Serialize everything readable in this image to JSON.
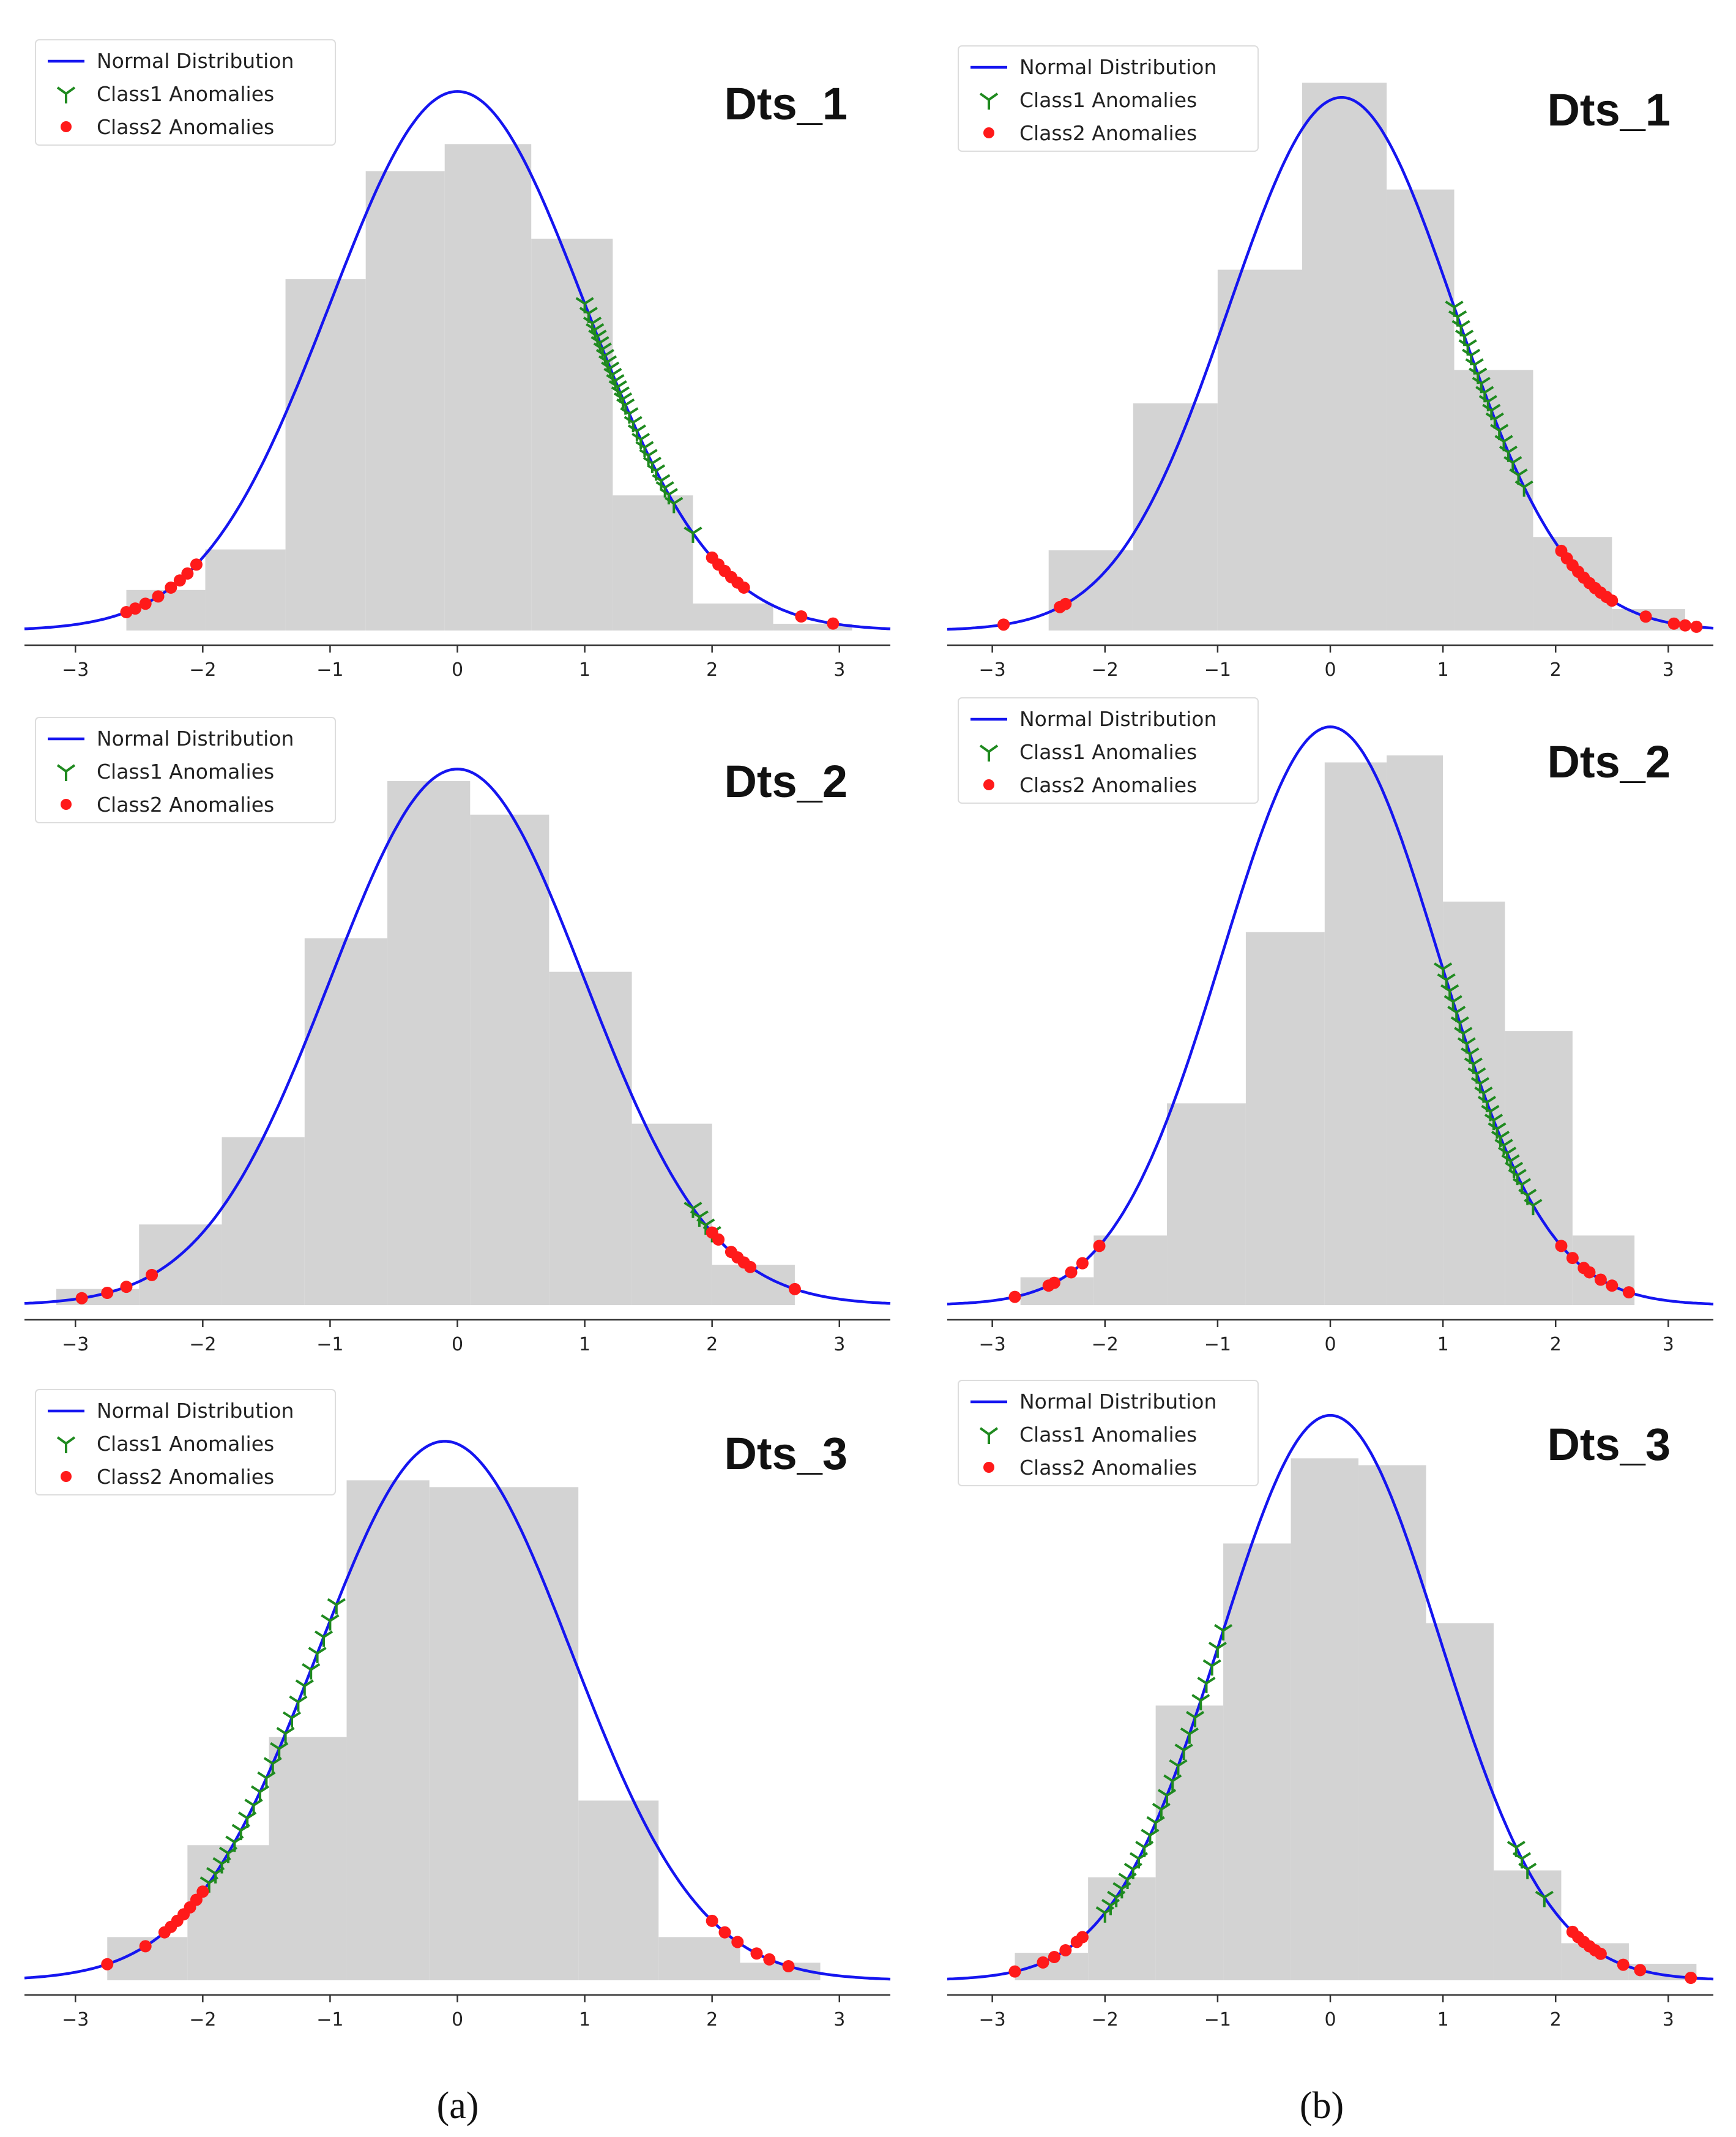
{
  "colors": {
    "bars": "#d3d3d3",
    "curve": "#1515f0",
    "class1": "#1f8a1f",
    "class2": "#ff1a1a",
    "axis": "#333333",
    "background": "#ffffff"
  },
  "legend": {
    "normal_label": "Normal Distribution",
    "class1_label": "Class1 Anomalies",
    "class2_label": "Class2  Anomalies"
  },
  "captions": {
    "a": "(a)",
    "b": "(b)"
  },
  "chart_data": [
    {
      "type": "histogram",
      "column": "a",
      "title": "Dts_1",
      "xlabel": "",
      "ylabel": "",
      "xticks": [
        -3,
        -2,
        -1,
        0,
        1,
        2,
        3
      ],
      "xlim": [
        -3.4,
        3.4
      ],
      "ylim": [
        0,
        0.41
      ],
      "legend_position": "top-left",
      "histogram": {
        "edges": [
          -2.6,
          -1.98,
          -1.35,
          -0.72,
          -0.1,
          0.58,
          1.22,
          1.85,
          2.48,
          3.1
        ],
        "density": [
          0.03,
          0.06,
          0.26,
          0.34,
          0.36,
          0.29,
          0.1,
          0.02,
          0.005
        ]
      },
      "normal": {
        "mean": 0.0,
        "std": 1.0,
        "scale": 1.0
      },
      "class1_x": [
        1.0,
        1.03,
        1.06,
        1.08,
        1.1,
        1.12,
        1.14,
        1.16,
        1.18,
        1.2,
        1.22,
        1.24,
        1.26,
        1.28,
        1.3,
        1.32,
        1.35,
        1.38,
        1.41,
        1.44,
        1.47,
        1.5,
        1.53,
        1.56,
        1.6,
        1.63,
        1.66,
        1.7,
        1.85
      ],
      "class2_x": [
        -2.6,
        -2.53,
        -2.45,
        -2.35,
        -2.25,
        -2.18,
        -2.12,
        -2.05,
        2.0,
        2.05,
        2.1,
        2.15,
        2.2,
        2.25,
        2.7,
        2.95
      ]
    },
    {
      "type": "histogram",
      "column": "b",
      "title": "Dts_1",
      "xlabel": "",
      "ylabel": "",
      "xticks": [
        -3,
        -2,
        -1,
        0,
        1,
        2,
        3
      ],
      "xlim": [
        -3.4,
        3.4
      ],
      "ylim": [
        0,
        0.41
      ],
      "legend_position": "top-left",
      "histogram": {
        "edges": [
          -2.5,
          -1.75,
          -1.0,
          -0.25,
          0.5,
          1.1,
          1.8,
          2.5,
          3.15
        ],
        "density": [
          0.06,
          0.17,
          0.27,
          0.41,
          0.33,
          0.195,
          0.07,
          0.016
        ]
      },
      "normal": {
        "mean": 0.1,
        "std": 1.0,
        "scale": 1.0
      },
      "class1_x": [
        1.1,
        1.13,
        1.16,
        1.19,
        1.22,
        1.25,
        1.28,
        1.31,
        1.34,
        1.37,
        1.4,
        1.43,
        1.46,
        1.5,
        1.54,
        1.58,
        1.62,
        1.67,
        1.72
      ],
      "class2_x": [
        -2.9,
        -2.4,
        -2.35,
        2.05,
        2.1,
        2.15,
        2.2,
        2.25,
        2.3,
        2.35,
        2.4,
        2.45,
        2.5,
        2.8,
        3.05,
        3.15,
        3.25
      ]
    },
    {
      "type": "histogram",
      "column": "a",
      "title": "Dts_2",
      "xlabel": "",
      "ylabel": "",
      "xticks": [
        -3,
        -2,
        -1,
        0,
        1,
        2,
        3
      ],
      "xlim": [
        -3.4,
        3.4
      ],
      "ylim": [
        0,
        0.41
      ],
      "legend_position": "top-left",
      "histogram": {
        "edges": [
          -3.15,
          -2.5,
          -1.85,
          -1.2,
          -0.55,
          0.1,
          0.72,
          1.37,
          2.0,
          2.65
        ],
        "density": [
          0.012,
          0.06,
          0.125,
          0.273,
          0.39,
          0.365,
          0.248,
          0.135,
          0.03
        ]
      },
      "normal": {
        "mean": 0.0,
        "std": 1.0,
        "scale": 1.0
      },
      "class1_x": [
        1.85,
        1.9,
        1.95,
        2.0
      ],
      "class2_x": [
        -2.95,
        -2.75,
        -2.6,
        -2.4,
        2.0,
        2.05,
        2.15,
        2.2,
        2.25,
        2.3,
        2.65
      ]
    },
    {
      "type": "histogram",
      "column": "b",
      "title": "Dts_2",
      "xlabel": "",
      "ylabel": "",
      "xticks": [
        -3,
        -2,
        -1,
        0,
        1,
        2,
        3
      ],
      "xlim": [
        -3.4,
        3.4
      ],
      "ylim": [
        0,
        0.41
      ],
      "legend_position": "top-left",
      "histogram": {
        "edges": [
          -2.75,
          -2.1,
          -1.45,
          -0.75,
          -0.05,
          0.5,
          1.0,
          1.55,
          2.15,
          2.7
        ],
        "density": [
          0.02,
          0.05,
          0.145,
          0.268,
          0.39,
          0.395,
          0.29,
          0.197,
          0.05
        ]
      },
      "normal": {
        "mean": 0.0,
        "std": 0.96,
        "scale": 1.0
      },
      "class1_x": [
        1.0,
        1.03,
        1.06,
        1.09,
        1.12,
        1.15,
        1.18,
        1.21,
        1.24,
        1.27,
        1.3,
        1.33,
        1.36,
        1.39,
        1.42,
        1.45,
        1.48,
        1.51,
        1.54,
        1.57,
        1.6,
        1.63,
        1.66,
        1.7,
        1.75,
        1.8
      ],
      "class2_x": [
        -2.8,
        -2.5,
        -2.45,
        -2.3,
        -2.2,
        -2.05,
        2.05,
        2.15,
        2.25,
        2.3,
        2.4,
        2.5,
        2.65
      ]
    },
    {
      "type": "histogram",
      "column": "a",
      "title": "Dts_3",
      "xlabel": "",
      "ylabel": "",
      "xticks": [
        -3,
        -2,
        -1,
        0,
        1,
        2,
        3
      ],
      "xlim": [
        -3.4,
        3.4
      ],
      "ylim": [
        0,
        0.41
      ],
      "legend_position": "top-left",
      "histogram": {
        "edges": [
          -2.75,
          -2.12,
          -1.48,
          -0.87,
          -0.22,
          0.95,
          1.58,
          2.22,
          2.85
        ],
        "density": [
          0.032,
          0.1,
          0.18,
          0.37,
          0.365,
          0.133,
          0.032,
          0.013
        ]
      },
      "normal": {
        "mean": -0.1,
        "std": 1.0,
        "scale": 1.0
      },
      "class1_x": [
        -1.95,
        -1.9,
        -1.85,
        -1.8,
        -1.75,
        -1.7,
        -1.65,
        -1.6,
        -1.55,
        -1.5,
        -1.45,
        -1.4,
        -1.35,
        -1.3,
        -1.25,
        -1.2,
        -1.15,
        -1.1,
        -1.05,
        -1.0,
        -0.95
      ],
      "class2_x": [
        -2.75,
        -2.45,
        -2.3,
        -2.25,
        -2.2,
        -2.15,
        -2.1,
        -2.05,
        -2.0,
        2.0,
        2.1,
        2.2,
        2.35,
        2.45,
        2.6
      ]
    },
    {
      "type": "histogram",
      "column": "b",
      "title": "Dts_3",
      "xlabel": "",
      "ylabel": "",
      "xticks": [
        -3,
        -2,
        -1,
        0,
        1,
        2,
        3
      ],
      "xlim": [
        -3.4,
        3.4
      ],
      "ylim": [
        0,
        0.41
      ],
      "legend_position": "top-left",
      "histogram": {
        "edges": [
          -2.8,
          -2.15,
          -1.55,
          -0.95,
          -0.35,
          0.25,
          0.85,
          1.45,
          2.05,
          2.65,
          3.25
        ],
        "density": [
          0.02,
          0.075,
          0.2,
          0.318,
          0.38,
          0.375,
          0.26,
          0.08,
          0.027,
          0.012
        ]
      },
      "normal": {
        "mean": 0.0,
        "std": 0.97,
        "scale": 1.0
      },
      "class1_x": [
        -2.0,
        -1.95,
        -1.9,
        -1.85,
        -1.8,
        -1.75,
        -1.7,
        -1.65,
        -1.6,
        -1.55,
        -1.5,
        -1.45,
        -1.4,
        -1.35,
        -1.3,
        -1.25,
        -1.2,
        -1.15,
        -1.1,
        -1.05,
        -1.0,
        -0.95,
        1.65,
        1.7,
        1.75,
        1.9
      ],
      "class2_x": [
        -2.8,
        -2.55,
        -2.45,
        -2.35,
        -2.25,
        -2.2,
        2.15,
        2.2,
        2.25,
        2.3,
        2.35,
        2.4,
        2.6,
        2.75,
        3.2
      ]
    }
  ]
}
